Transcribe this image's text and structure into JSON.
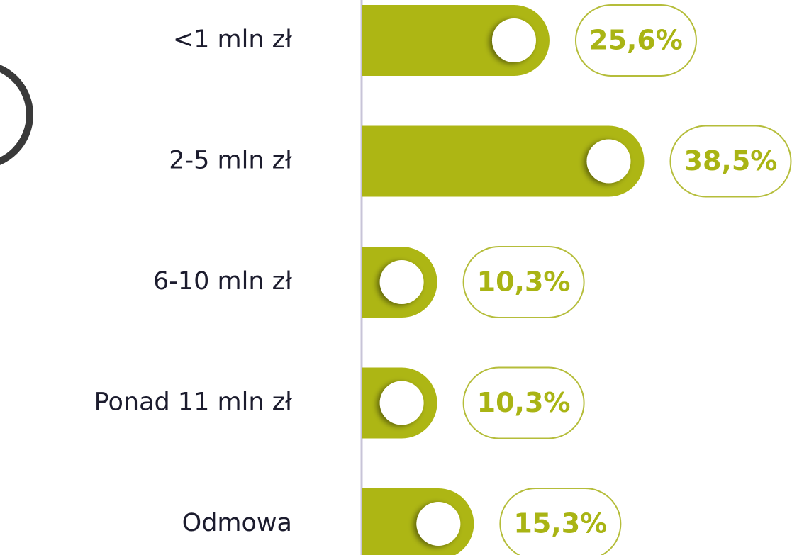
{
  "chart_data": {
    "type": "bar",
    "orientation": "horizontal",
    "categories": [
      "<1 mln zł",
      "2-5 mln zł",
      "6-10 mln zł",
      "Ponad 11 mln zł",
      "Odmowa"
    ],
    "values": [
      25.6,
      38.5,
      10.3,
      10.3,
      15.3
    ],
    "value_labels": [
      "25,6%",
      "38,5%",
      "10,3%",
      "10,3%",
      "15,3%"
    ],
    "color": "#adb614"
  }
}
